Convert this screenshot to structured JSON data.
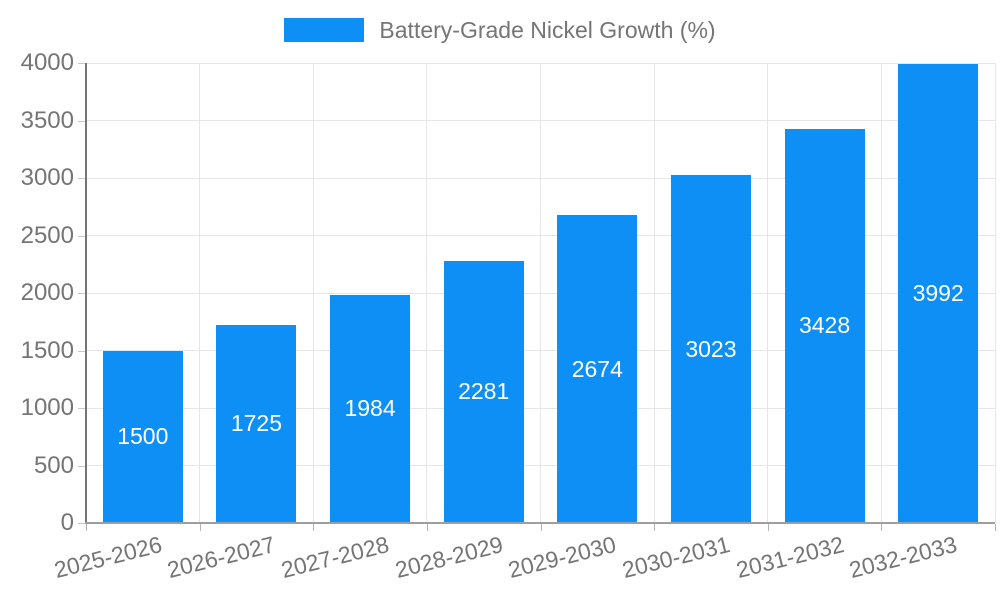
{
  "chart_data": {
    "type": "bar",
    "title": "Battery-Grade Nickel Growth (%)",
    "legend": {
      "label": "Battery-Grade Nickel Growth (%)",
      "position": "top"
    },
    "categories": [
      "2025-2026",
      "2026-2027",
      "2027-2028",
      "2028-2029",
      "2029-2030",
      "2030-2031",
      "2031-2032",
      "2032-2033"
    ],
    "values": [
      1500,
      1725,
      1984,
      2281,
      2674,
      3023,
      3428,
      3992
    ],
    "xlabel": "",
    "ylabel": "",
    "ylim": [
      0,
      4000
    ],
    "ytick_step": 500,
    "ytick_labels": [
      "0",
      "500",
      "1000",
      "1500",
      "2000",
      "2500",
      "3000",
      "3500",
      "4000"
    ],
    "grid": true,
    "value_labels_shown": true,
    "colors": {
      "bar": "#0d8ff5",
      "bar_value_text": "#ffffff",
      "axis_text": "#757575",
      "legend_text": "#757575",
      "gridline": "#e6e6e6",
      "axis_line_y": "#757575",
      "axis_line_x": "#9e9e9e"
    }
  }
}
